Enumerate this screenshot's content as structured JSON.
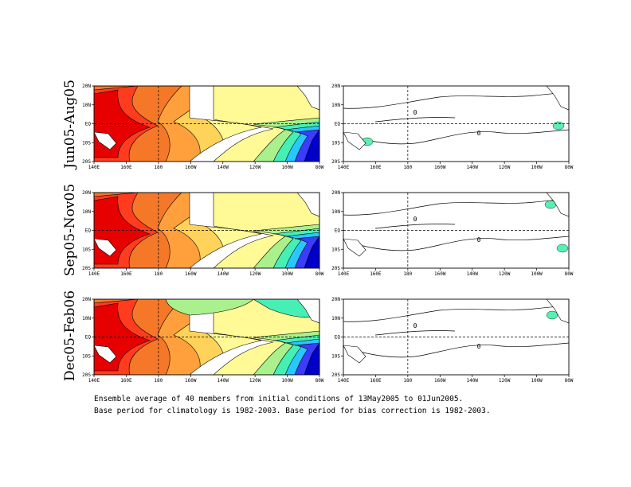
{
  "rows": [
    {
      "label": "Jun05-Aug05"
    },
    {
      "label": "Sep05-Nov05"
    },
    {
      "label": "Dec05-Feb06"
    }
  ],
  "map": {
    "lon_ticks": [
      "140E",
      "160E",
      "180",
      "160W",
      "140W",
      "120W",
      "100W",
      "80W"
    ],
    "lat_ticks": [
      "20N",
      "10N",
      "EQ",
      "10S",
      "20S"
    ],
    "contour_label": "0"
  },
  "colors": {
    "levels": [
      "#0000c8",
      "#3c3cff",
      "#3296ff",
      "#28c8ff",
      "#46f0b4",
      "#aaf08c",
      "#ffffff",
      "#fffa96",
      "#ffd25a",
      "#ffa03c",
      "#f57828",
      "#ff3c1e",
      "#e60000"
    ],
    "anomaly_fill": "#5af0b4",
    "land": "#ffffff",
    "line": "#000000"
  },
  "caption": {
    "line1": "Ensemble average of 40 members from initial conditions of 13May2005 to 01Jun2005.",
    "line2": "Base period for climatology is 1982-2003. Base period for bias correction is 1982-2003."
  }
}
